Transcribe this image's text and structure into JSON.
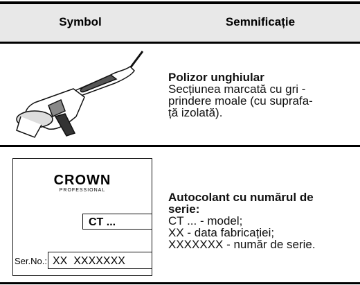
{
  "header": {
    "columns": [
      "Symbol",
      "Semnificație"
    ]
  },
  "rows": [
    {
      "title": [
        "Polizor unghiular"
      ],
      "lines": [
        "Secțiunea marcată cu gri -",
        "prindere moale (cu suprafa-",
        "ță izolată)."
      ]
    },
    {
      "label": {
        "brand": "CROWN",
        "sub": "PROFESSIONAL",
        "model": "CT ...",
        "serial_label": "Ser.No.:",
        "serial": "XX  XXXXXXX"
      },
      "title": [
        "Autocolant cu numărul de",
        "serie:"
      ],
      "lines": [
        "CT ... - model;",
        "XX - data fabricației;",
        "XXXXXXX - număr de serie."
      ]
    }
  ]
}
